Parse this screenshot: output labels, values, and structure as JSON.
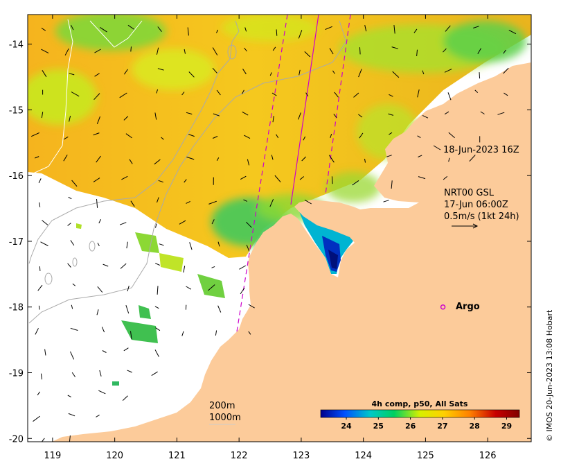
{
  "map": {
    "lon_range": [
      118.6,
      126.7
    ],
    "lat_range": [
      -20.05,
      -13.55
    ],
    "lon_ticks": [
      "119",
      "120",
      "121",
      "122",
      "123",
      "124",
      "125",
      "126"
    ],
    "lat_ticks": [
      "-14",
      "-15",
      "-16",
      "-17",
      "-18",
      "-19",
      "-20"
    ],
    "colors": {
      "land": "#FCCB9A",
      "no_data": "#ffffff",
      "track": "#cc00cc",
      "contour_200m": "#aaaaaa",
      "contour_1000m": "#ffffff"
    }
  },
  "annotations": {
    "track_time": "18-Jun-2023 16Z",
    "current_product": "NRT00 GSL",
    "current_time": "17-Jun 06:00Z",
    "current_scale": "0.5m/s (1kt 24h)",
    "argo_label": "Argo",
    "contour_200m_label": "200m",
    "contour_1000m_label": "1000m",
    "credit": "© IMOS 20-Jun-2023 13:08 Hobart"
  },
  "colorbar": {
    "title": "4h comp, p50, All Sats",
    "ticks": [
      "24",
      "25",
      "26",
      "27",
      "28",
      "29"
    ],
    "range": [
      23.2,
      29.4
    ],
    "colors": [
      "#00008b",
      "#0050ff",
      "#00c8c8",
      "#00d060",
      "#d8f000",
      "#ffd000",
      "#ff8000",
      "#c80000",
      "#800000"
    ]
  },
  "argo": {
    "lon": 125.28,
    "lat": -18.0
  }
}
